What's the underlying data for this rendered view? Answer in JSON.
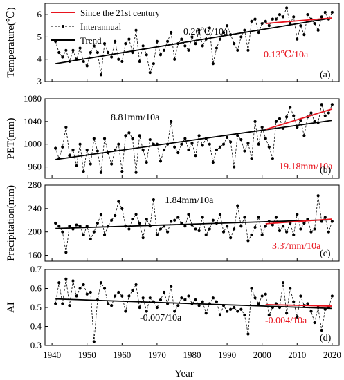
{
  "legend": {
    "items": [
      {
        "label": "Since the 21st century",
        "style": "red-line"
      },
      {
        "label": "Interannual",
        "style": "dashed-dot"
      },
      {
        "label": "Trend",
        "style": "black-line"
      }
    ]
  },
  "x_axis": {
    "label": "Year",
    "range": [
      1938,
      2022
    ],
    "ticks": [
      1940,
      1950,
      1960,
      1970,
      1980,
      1990,
      2000,
      2010,
      2020
    ]
  },
  "colors": {
    "recent_trend": "#e8141e",
    "trend": "#000000",
    "interannual": "#000000"
  },
  "chart_data": [
    {
      "type": "line",
      "panel": "(a)",
      "ylabel": "Temperature(℃)",
      "ylim": [
        3,
        6.5
      ],
      "yticks": [
        3,
        4,
        5,
        6
      ],
      "x": [
        1941,
        1942,
        1943,
        1944,
        1945,
        1946,
        1947,
        1948,
        1949,
        1950,
        1951,
        1952,
        1953,
        1954,
        1955,
        1956,
        1957,
        1958,
        1959,
        1960,
        1961,
        1962,
        1963,
        1964,
        1965,
        1966,
        1967,
        1968,
        1969,
        1970,
        1971,
        1972,
        1973,
        1974,
        1975,
        1976,
        1977,
        1978,
        1979,
        1980,
        1981,
        1982,
        1983,
        1984,
        1985,
        1986,
        1987,
        1988,
        1989,
        1990,
        1991,
        1992,
        1993,
        1994,
        1995,
        1996,
        1997,
        1998,
        1999,
        2000,
        2001,
        2002,
        2003,
        2004,
        2005,
        2006,
        2007,
        2008,
        2009,
        2010,
        2011,
        2012,
        2013,
        2014,
        2015,
        2016,
        2017,
        2018,
        2019,
        2020
      ],
      "values": [
        4.8,
        4.3,
        4.1,
        4.4,
        3.9,
        4.4,
        4.0,
        4.5,
        3.9,
        3.7,
        4.3,
        4.6,
        4.3,
        3.3,
        4.7,
        4.3,
        4.1,
        4.8,
        4.0,
        3.9,
        4.7,
        4.9,
        4.3,
        5.3,
        3.9,
        4.6,
        4.2,
        3.4,
        3.8,
        4.8,
        4.2,
        4.4,
        4.8,
        5.2,
        4.0,
        4.7,
        4.9,
        4.6,
        4.4,
        5.0,
        4.7,
        5.3,
        4.6,
        4.9,
        5.4,
        3.8,
        4.5,
        4.9,
        5.2,
        5.5,
        5.1,
        4.7,
        4.4,
        5.0,
        5.3,
        4.4,
        5.7,
        5.8,
        5.2,
        5.6,
        5.7,
        5.5,
        5.8,
        5.8,
        6.0,
        5.9,
        6.3,
        5.6,
        5.9,
        4.9,
        5.5,
        5.1,
        6.0,
        5.8,
        5.6,
        5.3,
        5.9,
        6.1,
        5.8,
        6.1
      ],
      "trend": {
        "x": [
          1941,
          2020
        ],
        "y": [
          3.8,
          5.85
        ],
        "label": "0.26℃/10a"
      },
      "recent_trend": {
        "x": [
          2001,
          2020
        ],
        "y": [
          5.6,
          5.85
        ],
        "label": "0.13℃/10a"
      }
    },
    {
      "type": "line",
      "panel": "(b)",
      "ylabel": "PET(mm)",
      "ylim": [
        940,
        1080
      ],
      "yticks": [
        960,
        1000,
        1040,
        1080
      ],
      "x": [
        1941,
        1942,
        1943,
        1944,
        1945,
        1946,
        1947,
        1948,
        1949,
        1950,
        1951,
        1952,
        1953,
        1954,
        1955,
        1956,
        1957,
        1958,
        1959,
        1960,
        1961,
        1962,
        1963,
        1964,
        1965,
        1966,
        1967,
        1968,
        1969,
        1970,
        1971,
        1972,
        1973,
        1974,
        1975,
        1976,
        1977,
        1978,
        1979,
        1980,
        1981,
        1982,
        1983,
        1984,
        1985,
        1986,
        1987,
        1988,
        1989,
        1990,
        1991,
        1992,
        1993,
        1994,
        1995,
        1996,
        1997,
        1998,
        1999,
        2000,
        2001,
        2002,
        2003,
        2004,
        2005,
        2006,
        2007,
        2008,
        2009,
        2010,
        2011,
        2012,
        2013,
        2014,
        2015,
        2016,
        2017,
        2018,
        2019,
        2020
      ],
      "values": [
        993,
        975,
        995,
        1030,
        980,
        990,
        962,
        1000,
        952,
        990,
        965,
        1010,
        988,
        950,
        1010,
        985,
        965,
        990,
        1000,
        952,
        1015,
        1020,
        1010,
        950,
        1015,
        990,
        968,
        1008,
        1000,
        1000,
        970,
        990,
        1000,
        1040,
        995,
        985,
        1000,
        1010,
        990,
        1002,
        980,
        1015,
        998,
        1010,
        1000,
        968,
        990,
        995,
        1000,
        1012,
        1004,
        960,
        1015,
        1008,
        988,
        1002,
        975,
        1040,
        1000,
        1030,
        1010,
        995,
        975,
        1040,
        1045,
        1028,
        1048,
        1065,
        1050,
        1030,
        1042,
        1015,
        1048,
        1055,
        1040,
        1038,
        1070,
        1050,
        1055,
        1070
      ],
      "trend": {
        "x": [
          1941,
          2020
        ],
        "y": [
          973,
          1042
        ],
        "label": "8.81mm/10a"
      },
      "recent_trend": {
        "x": [
          2001,
          2020
        ],
        "y": [
          1026,
          1062
        ],
        "label": "19.18mm/10a"
      }
    },
    {
      "type": "line",
      "panel": "(c)",
      "ylabel": "Precipitation(mm)",
      "ylim": [
        150,
        280
      ],
      "yticks": [
        160,
        200,
        240,
        280
      ],
      "x": [
        1941,
        1942,
        1943,
        1944,
        1945,
        1946,
        1947,
        1948,
        1949,
        1950,
        1951,
        1952,
        1953,
        1954,
        1955,
        1956,
        1957,
        1958,
        1959,
        1960,
        1961,
        1962,
        1963,
        1964,
        1965,
        1966,
        1967,
        1968,
        1969,
        1970,
        1971,
        1972,
        1973,
        1974,
        1975,
        1976,
        1977,
        1978,
        1979,
        1980,
        1981,
        1982,
        1983,
        1984,
        1985,
        1986,
        1987,
        1988,
        1989,
        1990,
        1991,
        1992,
        1993,
        1994,
        1995,
        1996,
        1997,
        1998,
        1999,
        2000,
        2001,
        2002,
        2003,
        2004,
        2005,
        2006,
        2007,
        2008,
        2009,
        2010,
        2011,
        2012,
        2013,
        2014,
        2015,
        2016,
        2017,
        2018,
        2019,
        2020
      ],
      "values": [
        215,
        210,
        200,
        165,
        210,
        205,
        212,
        210,
        195,
        210,
        188,
        200,
        215,
        230,
        195,
        210,
        220,
        228,
        252,
        240,
        210,
        205,
        222,
        230,
        215,
        190,
        222,
        210,
        255,
        195,
        205,
        210,
        200,
        218,
        220,
        225,
        215,
        210,
        230,
        212,
        205,
        202,
        225,
        195,
        205,
        220,
        215,
        230,
        200,
        210,
        190,
        205,
        245,
        210,
        225,
        185,
        195,
        208,
        225,
        195,
        210,
        218,
        212,
        225,
        202,
        210,
        200,
        215,
        195,
        230,
        205,
        215,
        222,
        200,
        205,
        262,
        218,
        225,
        200,
        218
      ],
      "trend": {
        "x": [
          1941,
          2020
        ],
        "y": [
          206,
          221
        ],
        "label": "1.84mm/10a"
      },
      "recent_trend": {
        "x": [
          2001,
          2020
        ],
        "y": [
          214,
          222
        ],
        "label": "3.37mm/10a"
      }
    },
    {
      "type": "line",
      "panel": "(d)",
      "ylabel": "AI",
      "ylim": [
        0.3,
        0.7
      ],
      "yticks": [
        0.3,
        0.4,
        0.5,
        0.6,
        0.7
      ],
      "x": [
        1941,
        1942,
        1943,
        1944,
        1945,
        1946,
        1947,
        1948,
        1949,
        1950,
        1951,
        1952,
        1953,
        1954,
        1955,
        1956,
        1957,
        1958,
        1959,
        1960,
        1961,
        1962,
        1963,
        1964,
        1965,
        1966,
        1967,
        1968,
        1969,
        1970,
        1971,
        1972,
        1973,
        1974,
        1975,
        1976,
        1977,
        1978,
        1979,
        1980,
        1981,
        1982,
        1983,
        1984,
        1985,
        1986,
        1987,
        1988,
        1989,
        1990,
        1991,
        1992,
        1993,
        1994,
        1995,
        1996,
        1997,
        1998,
        1999,
        2000,
        2001,
        2002,
        2003,
        2004,
        2005,
        2006,
        2007,
        2008,
        2009,
        2010,
        2011,
        2012,
        2013,
        2014,
        2015,
        2016,
        2017,
        2018,
        2019,
        2020
      ],
      "values": [
        0.52,
        0.63,
        0.52,
        0.65,
        0.51,
        0.64,
        0.56,
        0.6,
        0.62,
        0.57,
        0.58,
        0.32,
        0.54,
        0.63,
        0.6,
        0.52,
        0.51,
        0.56,
        0.58,
        0.56,
        0.48,
        0.56,
        0.59,
        0.62,
        0.5,
        0.55,
        0.48,
        0.55,
        0.53,
        0.5,
        0.54,
        0.58,
        0.52,
        0.61,
        0.48,
        0.51,
        0.55,
        0.54,
        0.56,
        0.52,
        0.54,
        0.51,
        0.53,
        0.47,
        0.52,
        0.55,
        0.53,
        0.46,
        0.51,
        0.48,
        0.49,
        0.5,
        0.48,
        0.49,
        0.46,
        0.36,
        0.6,
        0.55,
        0.52,
        0.56,
        0.57,
        0.46,
        0.5,
        0.52,
        0.5,
        0.63,
        0.47,
        0.6,
        0.53,
        0.45,
        0.56,
        0.51,
        0.52,
        0.48,
        0.42,
        0.5,
        0.38,
        0.49,
        0.5,
        0.56
      ],
      "trend": {
        "x": [
          1941,
          2020
        ],
        "y": [
          0.545,
          0.495
        ],
        "label": "-0.007/10a"
      },
      "recent_trend": {
        "x": [
          2001,
          2020
        ],
        "y": [
          0.515,
          0.507
        ],
        "label": "-0.004/10a"
      }
    }
  ]
}
